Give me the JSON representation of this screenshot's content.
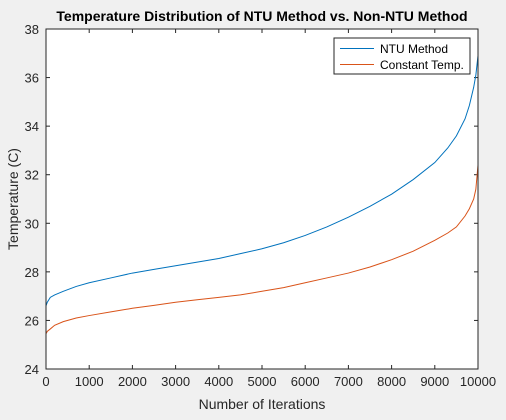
{
  "chart_data": {
    "type": "line",
    "title": "Temperature Distribution of NTU Method vs. Non-NTU Method",
    "xlabel": "Number of Iterations",
    "ylabel": "Temperature (C)",
    "xlim": [
      0,
      10000
    ],
    "ylim": [
      24,
      38
    ],
    "x_ticks": [
      0,
      1000,
      2000,
      3000,
      4000,
      5000,
      6000,
      7000,
      8000,
      9000,
      10000
    ],
    "y_ticks": [
      24,
      26,
      28,
      30,
      32,
      34,
      36,
      38
    ],
    "grid": false,
    "legend_position": "top-right",
    "series": [
      {
        "name": "NTU Method",
        "color": "#0072bd",
        "x": [
          0,
          30,
          100,
          200,
          400,
          700,
          1000,
          1500,
          2000,
          2500,
          3000,
          3500,
          4000,
          4500,
          5000,
          5500,
          6000,
          6500,
          7000,
          7500,
          8000,
          8500,
          9000,
          9300,
          9500,
          9700,
          9800,
          9900,
          9950,
          10000
        ],
        "values": [
          26.6,
          26.75,
          26.95,
          27.05,
          27.2,
          27.4,
          27.55,
          27.75,
          27.95,
          28.1,
          28.25,
          28.4,
          28.55,
          28.75,
          28.95,
          29.2,
          29.5,
          29.85,
          30.25,
          30.7,
          31.2,
          31.8,
          32.5,
          33.1,
          33.6,
          34.3,
          34.85,
          35.6,
          36.1,
          36.9
        ]
      },
      {
        "name": "Constant Temp.",
        "color": "#d95319",
        "x": [
          0,
          30,
          100,
          200,
          400,
          700,
          1000,
          1500,
          2000,
          2500,
          3000,
          3500,
          4000,
          4500,
          5000,
          5500,
          6000,
          6500,
          7000,
          7500,
          8000,
          8500,
          9000,
          9300,
          9500,
          9700,
          9800,
          9900,
          9950,
          10000
        ],
        "values": [
          25.45,
          25.55,
          25.65,
          25.8,
          25.95,
          26.1,
          26.2,
          26.35,
          26.5,
          26.62,
          26.75,
          26.85,
          26.95,
          27.05,
          27.2,
          27.35,
          27.55,
          27.75,
          27.95,
          28.2,
          28.5,
          28.85,
          29.3,
          29.6,
          29.85,
          30.3,
          30.6,
          31.0,
          31.4,
          32.4
        ]
      }
    ]
  }
}
